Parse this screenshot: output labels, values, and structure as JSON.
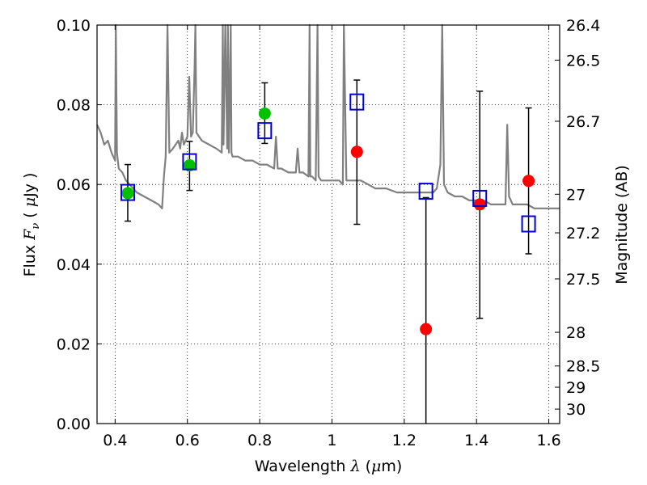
{
  "chart_data": {
    "type": "scatter",
    "xlabel": "Wavelength  λ (μm)",
    "ylabel": "Flux  F_ν  ( μJy )",
    "y2label": "Magnitude (AB)",
    "xlim": [
      0.35,
      1.63
    ],
    "ylim": [
      0.0,
      0.1
    ],
    "grid": true,
    "x_ticks": [
      0.4,
      0.6,
      0.8,
      1.0,
      1.2,
      1.4,
      1.6
    ],
    "x_tick_labels": [
      "0.4",
      "0.6",
      "0.8",
      "1",
      "1.2",
      "1.4",
      "1.6"
    ],
    "y_ticks": [
      0.0,
      0.02,
      0.04,
      0.06,
      0.08,
      0.1
    ],
    "y_tick_labels": [
      "0.00",
      "0.02",
      "0.04",
      "0.06",
      "0.08",
      "0.10"
    ],
    "y2_ticks": [
      26.4,
      26.5,
      26.7,
      27.0,
      27.2,
      27.5,
      28.0,
      28.5,
      29.0,
      30.0
    ],
    "y2_tick_labels": [
      "26.4",
      "26.5",
      "26.7",
      "27",
      "27.2",
      "27.5",
      "28",
      "28.5",
      "29",
      "30"
    ],
    "series": [
      {
        "marker": "circle",
        "color": "#00c000",
        "points": [
          {
            "x": 0.435,
            "y": 0.0578
          },
          {
            "x": 0.606,
            "y": 0.0648
          },
          {
            "x": 0.814,
            "y": 0.0778
          }
        ]
      },
      {
        "marker": "circle",
        "color": "#ff0000",
        "points": [
          {
            "x": 1.069,
            "y": 0.0682
          },
          {
            "x": 1.26,
            "y": 0.0237
          },
          {
            "x": 1.409,
            "y": 0.055
          },
          {
            "x": 1.544,
            "y": 0.0609
          }
        ]
      },
      {
        "marker": "square",
        "color": "#0000d0",
        "points": [
          {
            "x": 0.435,
            "y": 0.058
          },
          {
            "x": 0.606,
            "y": 0.0657
          },
          {
            "x": 0.814,
            "y": 0.0735
          },
          {
            "x": 1.069,
            "y": 0.0807
          },
          {
            "x": 1.26,
            "y": 0.0583
          },
          {
            "x": 1.409,
            "y": 0.0565
          },
          {
            "x": 1.544,
            "y": 0.0501
          }
        ]
      }
    ],
    "error_bars": [
      {
        "x": 0.435,
        "y_low": 0.0508,
        "y_high": 0.065
      },
      {
        "x": 0.606,
        "y_low": 0.0585,
        "y_high": 0.0708
      },
      {
        "x": 0.814,
        "y_low": 0.0703,
        "y_high": 0.0855
      },
      {
        "x": 1.069,
        "y_low": 0.05,
        "y_high": 0.0862
      },
      {
        "x": 1.26,
        "y_low": 0.0,
        "y_high": 0.0567
      },
      {
        "x": 1.409,
        "y_low": 0.0264,
        "y_high": 0.0834
      },
      {
        "x": 1.544,
        "y_low": 0.0426,
        "y_high": 0.0792
      }
    ],
    "spectrum": {
      "color": "#808080",
      "x": [
        0.35,
        0.36,
        0.37,
        0.38,
        0.39,
        0.4,
        0.402,
        0.405,
        0.41,
        0.42,
        0.43,
        0.44,
        0.46,
        0.48,
        0.5,
        0.52,
        0.53,
        0.535,
        0.54,
        0.545,
        0.55,
        0.56,
        0.575,
        0.58,
        0.585,
        0.59,
        0.6,
        0.605,
        0.61,
        0.615,
        0.62,
        0.622,
        0.625,
        0.64,
        0.66,
        0.68,
        0.695,
        0.698,
        0.7,
        0.705,
        0.71,
        0.712,
        0.715,
        0.72,
        0.722,
        0.725,
        0.74,
        0.76,
        0.78,
        0.8,
        0.82,
        0.84,
        0.845,
        0.85,
        0.86,
        0.88,
        0.9,
        0.905,
        0.91,
        0.92,
        0.935,
        0.938,
        0.94,
        0.945,
        0.955,
        0.96,
        0.963,
        0.97,
        0.98,
        1.0,
        1.02,
        1.03,
        1.033,
        1.04,
        1.06,
        1.08,
        1.1,
        1.12,
        1.15,
        1.18,
        1.2,
        1.22,
        1.24,
        1.26,
        1.28,
        1.29,
        1.3,
        1.305,
        1.31,
        1.32,
        1.34,
        1.36,
        1.38,
        1.4,
        1.42,
        1.44,
        1.46,
        1.48,
        1.485,
        1.49,
        1.5,
        1.52,
        1.54,
        1.56,
        1.58,
        1.6,
        1.63
      ],
      "y": [
        0.075,
        0.073,
        0.07,
        0.071,
        0.068,
        0.066,
        0.1,
        0.068,
        0.064,
        0.063,
        0.061,
        0.06,
        0.058,
        0.057,
        0.056,
        0.055,
        0.054,
        0.062,
        0.067,
        0.1,
        0.068,
        0.069,
        0.071,
        0.069,
        0.073,
        0.07,
        0.072,
        0.087,
        0.072,
        0.073,
        0.09,
        0.1,
        0.073,
        0.071,
        0.07,
        0.069,
        0.068,
        0.1,
        0.07,
        0.1,
        0.069,
        0.1,
        0.068,
        0.1,
        0.068,
        0.067,
        0.067,
        0.066,
        0.066,
        0.065,
        0.065,
        0.064,
        0.072,
        0.064,
        0.064,
        0.063,
        0.063,
        0.069,
        0.063,
        0.063,
        0.062,
        0.1,
        0.062,
        0.062,
        0.061,
        0.1,
        0.062,
        0.061,
        0.061,
        0.061,
        0.061,
        0.06,
        0.1,
        0.061,
        0.061,
        0.061,
        0.06,
        0.059,
        0.059,
        0.058,
        0.058,
        0.058,
        0.058,
        0.058,
        0.058,
        0.059,
        0.065,
        0.1,
        0.06,
        0.058,
        0.057,
        0.057,
        0.056,
        0.056,
        0.056,
        0.055,
        0.055,
        0.055,
        0.075,
        0.057,
        0.055,
        0.055,
        0.055,
        0.054,
        0.054,
        0.054,
        0.054
      ]
    }
  }
}
